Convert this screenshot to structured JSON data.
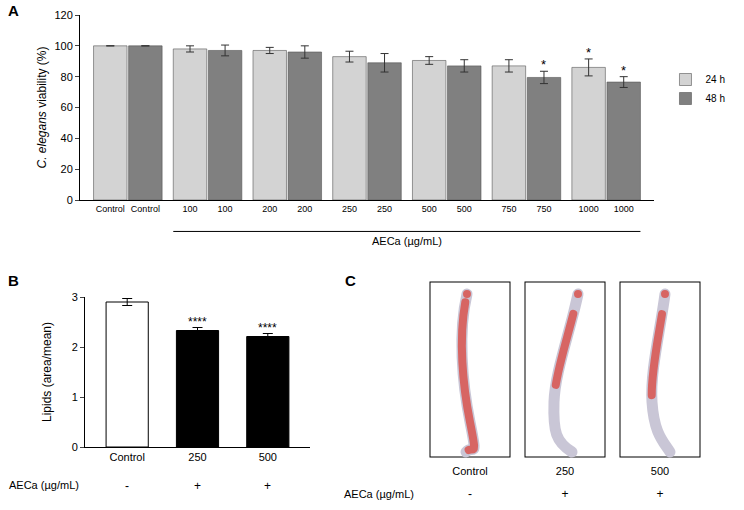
{
  "chart_data": [
    {
      "panel": "A",
      "type": "bar",
      "categories": [
        "Control",
        "100",
        "200",
        "250",
        "500",
        "750",
        "1000"
      ],
      "series": [
        {
          "name": "24 h",
          "color": "#d3d3d3",
          "values": [
            100,
            98,
            97,
            93,
            90.5,
            87,
            86
          ],
          "error": [
            0,
            2,
            2,
            3.5,
            2.5,
            4,
            5.5
          ],
          "significance": [
            null,
            null,
            null,
            null,
            null,
            null,
            "*"
          ]
        },
        {
          "name": "48 h",
          "color": "#808080",
          "values": [
            100,
            97,
            96,
            89,
            87,
            79.5,
            76.5
          ],
          "error": [
            0,
            3.5,
            4,
            6,
            4,
            4,
            3.5
          ],
          "significance": [
            null,
            null,
            null,
            null,
            null,
            "*",
            "*"
          ]
        }
      ],
      "y_label": "C. elegans viability (%)",
      "group_label": {
        "text": "AECa (µg/mL)",
        "from": "100",
        "to": "1000"
      },
      "ylim": [
        0,
        120
      ],
      "yticks": [
        0,
        20,
        40,
        60,
        80,
        100,
        120
      ],
      "legend": "right"
    },
    {
      "panel": "B",
      "type": "bar",
      "categories": [
        "Control",
        "250",
        "500"
      ],
      "values": [
        2.9,
        2.33,
        2.21
      ],
      "error": [
        0.07,
        0.06,
        0.06
      ],
      "colors": [
        "#ffffff",
        "#000000",
        "#000000"
      ],
      "significance": [
        null,
        "****",
        "****"
      ],
      "y_label": "Lipids (area/mean)",
      "ylim": [
        0,
        3
      ],
      "yticks": [
        0,
        1,
        2,
        3
      ],
      "treatment": {
        "label": "AECa (µg/mL)",
        "marks": [
          "-",
          "+",
          "+"
        ]
      }
    }
  ],
  "image_panel": {
    "panel": "C",
    "images": [
      "Control",
      "250",
      "500"
    ],
    "treatment": {
      "label": "AECa (µg/mL)",
      "marks": [
        "-",
        "+",
        "+"
      ]
    }
  }
}
